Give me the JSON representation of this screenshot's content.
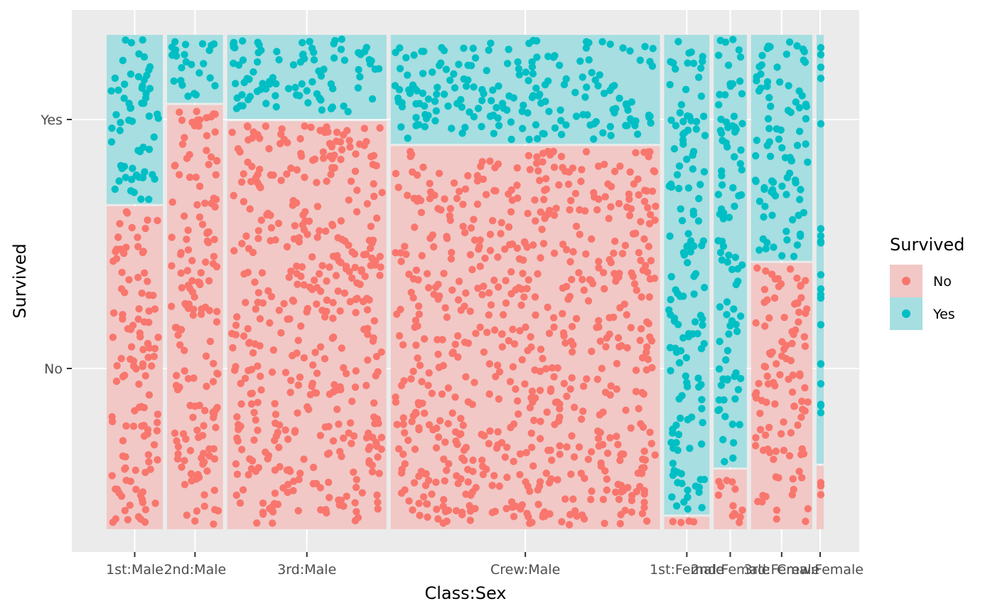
{
  "chart_data": {
    "type": "mosaic",
    "xlabel": "Class:Sex",
    "ylabel": "Survived",
    "y_ticks": [
      "No",
      "Yes"
    ],
    "categories": [
      "1st:Male",
      "2nd:Male",
      "3rd:Male",
      "Crew:Male",
      "1st:Female",
      "2nd:Female",
      "3rd:Female",
      "Crew:Female"
    ],
    "counts": [
      {
        "category": "1st:Male",
        "No": 118,
        "Yes": 62
      },
      {
        "category": "2nd:Male",
        "No": 154,
        "Yes": 25
      },
      {
        "category": "3rd:Male",
        "No": 422,
        "Yes": 88
      },
      {
        "category": "Crew:Male",
        "No": 670,
        "Yes": 192
      },
      {
        "category": "1st:Female",
        "No": 4,
        "Yes": 141
      },
      {
        "category": "2nd:Female",
        "No": 13,
        "Yes": 93
      },
      {
        "category": "3rd:Female",
        "No": 106,
        "Yes": 90
      },
      {
        "category": "Crew:Female",
        "No": 3,
        "Yes": 20
      }
    ],
    "legend": {
      "title": "Survived",
      "position": "right",
      "entries": [
        {
          "label": "No",
          "color": "#F8766D"
        },
        {
          "label": "Yes",
          "color": "#00BFC4"
        }
      ]
    },
    "grid": true
  }
}
